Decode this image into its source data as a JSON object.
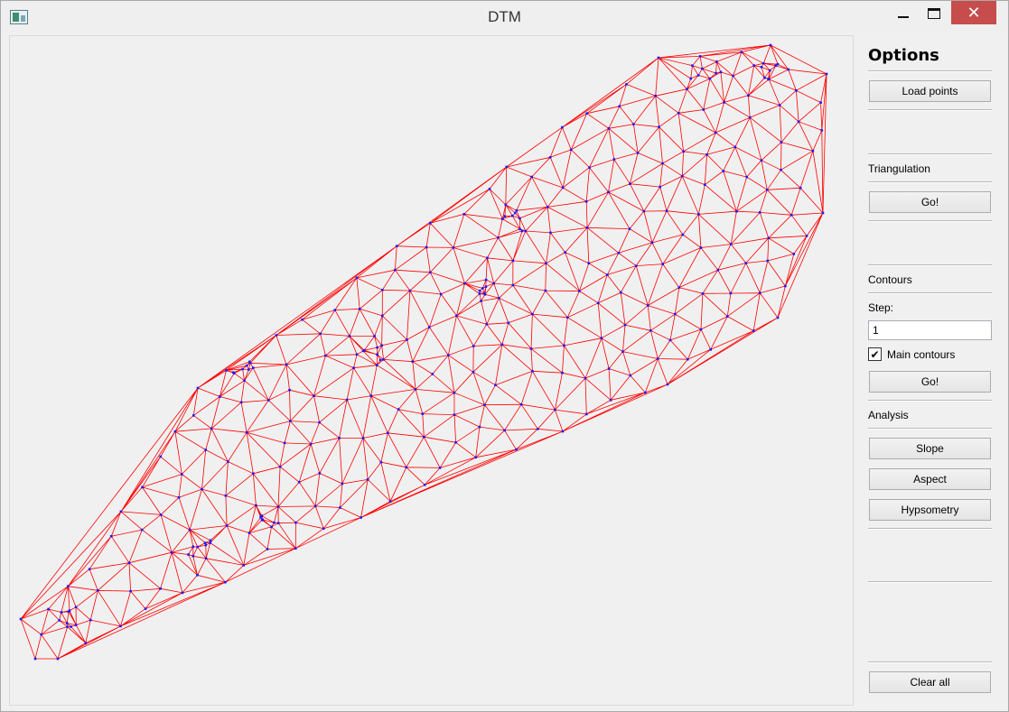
{
  "window": {
    "title": "DTM",
    "close_glyph": "✕"
  },
  "options": {
    "title": "Options",
    "load_points": "Load points",
    "triangulation": {
      "label": "Triangulation",
      "go": "Go!"
    },
    "contours": {
      "label": "Contours",
      "step_label": "Step:",
      "step_value": "1",
      "main_contours_label": "Main contours",
      "main_contours_checked": true,
      "check_glyph": "✔",
      "go": "Go!"
    },
    "analysis": {
      "label": "Analysis",
      "slope": "Slope",
      "aspect": "Aspect",
      "hypsometry": "Hypsometry"
    },
    "clear_all": "Clear all"
  },
  "colors": {
    "edge": "#ff0000",
    "point": "#1a1aff"
  }
}
